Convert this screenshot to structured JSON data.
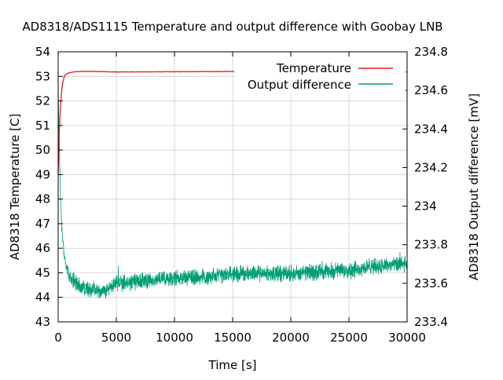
{
  "chart_data": {
    "type": "line",
    "title": "AD8318/ADS1115 Temperature and output difference with Goobay LNB",
    "xlabel": "Time [s]",
    "ylabel": "AD8318 Temperature [C]",
    "y2label": "AD8318 Output difference [mV]",
    "xlim": [
      0,
      30000
    ],
    "ylim": [
      43,
      54
    ],
    "y2lim": [
      233.4,
      234.8
    ],
    "x_ticks": [
      "0",
      "5000",
      "10000",
      "15000",
      "20000",
      "25000",
      "30000"
    ],
    "y_ticks": [
      "43",
      "44",
      "45",
      "46",
      "47",
      "48",
      "49",
      "50",
      "51",
      "52",
      "53",
      "54"
    ],
    "y2_ticks": [
      "233.4",
      "233.6",
      "233.8",
      "234",
      "234.2",
      "234.4",
      "234.6",
      "234.8"
    ],
    "grid": true,
    "legend_position": "top-right",
    "series": [
      {
        "name": "Temperature",
        "axis": "left",
        "color": "#e41a1c",
        "x": [
          0,
          100,
          200,
          300,
          400,
          500,
          600,
          800,
          1000,
          1200,
          1500,
          2000,
          3000,
          5000,
          10000,
          15000,
          20000,
          25000,
          30000
        ],
        "values": [
          49.0,
          50.8,
          51.8,
          52.4,
          52.75,
          52.95,
          53.05,
          53.12,
          53.15,
          53.17,
          53.19,
          53.2,
          53.2,
          53.18,
          53.19,
          53.2,
          53.19,
          53.2,
          53.18
        ]
      },
      {
        "name": "Output difference",
        "axis": "right",
        "color": "#009e73",
        "x": [
          0,
          100,
          200,
          300,
          400,
          500,
          700,
          1000,
          1500,
          2000,
          3000,
          4000,
          5000,
          7500,
          10000,
          12500,
          15000,
          17500,
          20000,
          22500,
          25000,
          27500,
          30000
        ],
        "values": [
          234.6,
          234.3,
          234.05,
          233.9,
          233.82,
          233.75,
          233.68,
          233.63,
          233.6,
          233.58,
          233.57,
          233.56,
          233.6,
          233.61,
          233.63,
          233.63,
          233.65,
          233.65,
          233.65,
          233.66,
          233.67,
          233.69,
          233.7
        ],
        "noise_amplitude": 0.05
      }
    ]
  }
}
